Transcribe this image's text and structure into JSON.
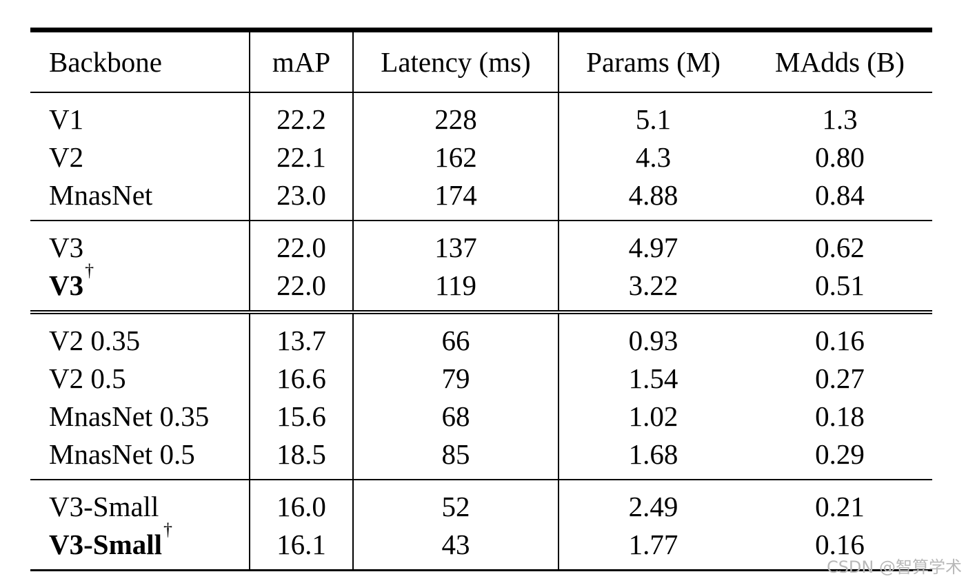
{
  "table": {
    "headers": {
      "backbone": "Backbone",
      "map": "mAP",
      "latency": "Latency (ms)",
      "params": "Params (M)",
      "madds": "MAdds (B)"
    },
    "groups": [
      [
        {
          "backbone": "V1",
          "dagger": "",
          "bold": false,
          "map": "22.2",
          "latency": "228",
          "params": "5.1",
          "madds": "1.3"
        },
        {
          "backbone": "V2",
          "dagger": "",
          "bold": false,
          "map": "22.1",
          "latency": "162",
          "params": "4.3",
          "madds": "0.80"
        },
        {
          "backbone": "MnasNet",
          "dagger": "",
          "bold": false,
          "map": "23.0",
          "latency": "174",
          "params": "4.88",
          "madds": "0.84"
        }
      ],
      [
        {
          "backbone": "V3",
          "dagger": "",
          "bold": false,
          "map": "22.0",
          "latency": "137",
          "params": "4.97",
          "madds": "0.62"
        },
        {
          "backbone": "V3",
          "dagger": "†",
          "bold": true,
          "map": "22.0",
          "latency": "119",
          "params": "3.22",
          "madds": "0.51"
        }
      ],
      [
        {
          "backbone": "V2 0.35",
          "dagger": "",
          "bold": false,
          "map": "13.7",
          "latency": "66",
          "params": "0.93",
          "madds": "0.16"
        },
        {
          "backbone": "V2 0.5",
          "dagger": "",
          "bold": false,
          "map": "16.6",
          "latency": "79",
          "params": "1.54",
          "madds": "0.27"
        },
        {
          "backbone": "MnasNet 0.35",
          "dagger": "",
          "bold": false,
          "map": "15.6",
          "latency": "68",
          "params": "1.02",
          "madds": "0.18"
        },
        {
          "backbone": "MnasNet 0.5",
          "dagger": "",
          "bold": false,
          "map": "18.5",
          "latency": "85",
          "params": "1.68",
          "madds": "0.29"
        }
      ],
      [
        {
          "backbone": "V3-Small",
          "dagger": "",
          "bold": false,
          "map": "16.0",
          "latency": "52",
          "params": "2.49",
          "madds": "0.21"
        },
        {
          "backbone": "V3-Small",
          "dagger": "†",
          "bold": true,
          "map": "16.1",
          "latency": "43",
          "params": "1.77",
          "madds": "0.16"
        }
      ]
    ]
  },
  "watermark": "CSDN @智算学术"
}
